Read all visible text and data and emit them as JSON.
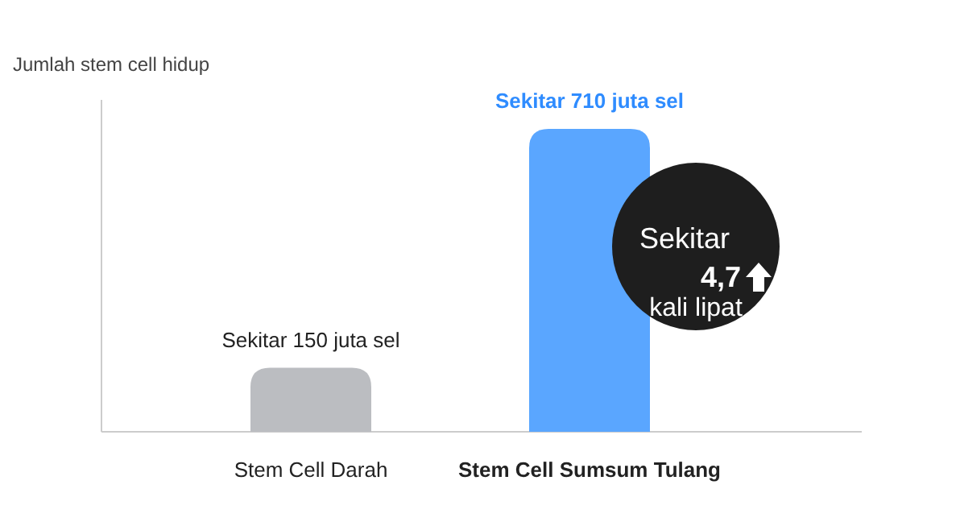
{
  "chart_data": {
    "type": "bar",
    "ylabel": "Jumlah stem cell hidup",
    "categories": [
      "Stem Cell Darah",
      "Stem Cell Sumsum Tulang"
    ],
    "values": [
      150,
      710
    ],
    "colors": [
      "#bbbdc1",
      "#5aa6ff"
    ],
    "value_labels": [
      "Sekitar 150 juta sel",
      "Sekitar 710 juta sel"
    ],
    "annotations": [
      "Sekitar",
      "4,7",
      "kali lipat"
    ]
  }
}
